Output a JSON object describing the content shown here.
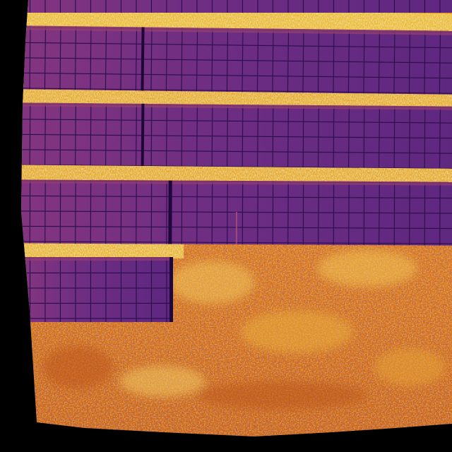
{
  "image": {
    "kind": "thermal-aerial-photo",
    "subject": "solar-panel-array",
    "palette": {
      "border": "#000000",
      "panel_base": "#7a2e88",
      "panel_light": "#8c3a84",
      "panel_dark": "#3a1460",
      "panel_grid": "#2a0d4e",
      "hot_ground": "#e87a1c",
      "ground_mid": "#f0a030",
      "hot_spot": "#ffe680",
      "hottest": "#fff6c0",
      "cool_spot": "#6a2a70",
      "deep_cool": "#3c1440"
    },
    "panel_rows": [
      {
        "cells_columns": 30,
        "cells_rows": 4,
        "break_column": 8
      },
      {
        "cells_columns": 30,
        "cells_rows": 4,
        "break_column": 8
      },
      {
        "cells_columns": 30,
        "cells_rows": 4,
        "break_column": 10
      },
      {
        "cells_columns": 10,
        "cells_rows": 4,
        "break_column": null
      }
    ]
  }
}
